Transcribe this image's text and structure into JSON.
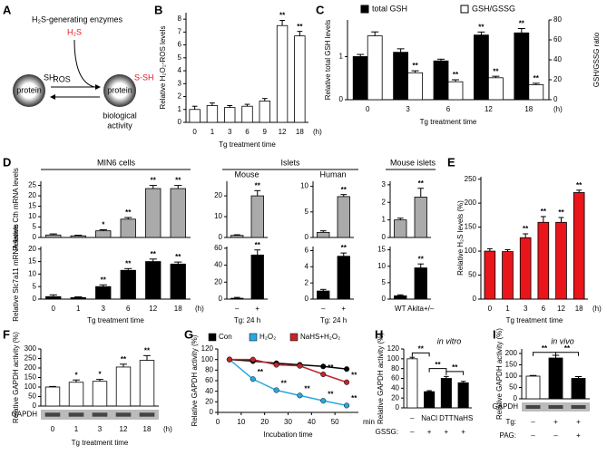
{
  "diagram": {
    "label": "A",
    "enzymes": "H₂S-generating enzymes",
    "h2s": "H₂S",
    "sh": "SH",
    "ssh": "S-SH",
    "protein": [
      "protein",
      "protein"
    ],
    "ros": "ROS",
    "activity": [
      "biological",
      "activity"
    ]
  },
  "chart_data": [
    {
      "type": "bar",
      "label": "B",
      "categories": [
        "0",
        "1",
        "3",
        "6",
        "9",
        "12",
        "18"
      ],
      "x_unit": "(h)",
      "xlabel": "Tg treatment time",
      "ylabel": "Relative H₂O₂-ROS levels",
      "ylim": [
        0,
        8.5
      ],
      "yticks": [
        0,
        1,
        2,
        3,
        4,
        5,
        6,
        7,
        8
      ],
      "series": [
        {
          "color": "#ffffff",
          "values": [
            1,
            1.3,
            1.15,
            1.25,
            1.65,
            7.5,
            6.7
          ],
          "errors": [
            0.25,
            0.2,
            0.15,
            0.15,
            0.2,
            0.4,
            0.35
          ],
          "stars": [
            null,
            null,
            null,
            null,
            null,
            "**",
            "**"
          ]
        }
      ]
    },
    {
      "type": "bar",
      "label": "C",
      "categories": [
        "0",
        "3",
        "6",
        "12",
        "18"
      ],
      "x_unit": "(h)",
      "xlabel": "Tg treatment time",
      "ylabel": "Relative total GSH levels",
      "y2label": "GSH/GSSG ratio",
      "ylim": [
        0,
        1.85
      ],
      "yticks": [
        0,
        1
      ],
      "y2lim": [
        0,
        80
      ],
      "y2ticks": [
        0,
        20,
        40,
        60,
        80
      ],
      "series": [
        {
          "name": "total GSH",
          "color": "#000000",
          "values": [
            1,
            1.1,
            0.9,
            1.5,
            1.55
          ],
          "errors": [
            0.05,
            0.08,
            0.04,
            0.07,
            0.1
          ],
          "stars": [
            null,
            null,
            null,
            "**",
            "**"
          ]
        },
        {
          "name": "GSH/GSSG",
          "color": "#ffffff",
          "axis": "y2",
          "values": [
            64,
            27,
            18,
            22,
            15
          ],
          "errors": [
            4,
            2,
            2,
            1.5,
            1.5
          ],
          "stars": [
            null,
            "**",
            "**",
            "**",
            "**"
          ]
        }
      ]
    },
    {
      "type": "bar",
      "label": "D",
      "title": "MIN6 cells",
      "ylabel": "Relative Cth mRNA levels",
      "ylim": [
        0,
        27
      ],
      "yticks": [
        0,
        5,
        10,
        15,
        20,
        25
      ],
      "series": [
        {
          "color": "#aaaaaa",
          "values": [
            1.2,
            0.8,
            3.2,
            8.8,
            23.5,
            23.5
          ],
          "errors": [
            0.5,
            0.3,
            0.5,
            0.8,
            1.5,
            1.5
          ],
          "stars": [
            null,
            null,
            "*",
            "**",
            "**",
            "**"
          ]
        }
      ]
    },
    {
      "type": "bar",
      "title": "Islets",
      "subtitle": "Mouse",
      "ylim": [
        0,
        27
      ],
      "yticks": [
        0,
        10,
        20
      ],
      "series": [
        {
          "color": "#aaaaaa",
          "values": [
            1,
            20
          ],
          "errors": [
            0.3,
            2.5
          ],
          "stars": [
            null,
            "**"
          ]
        }
      ]
    },
    {
      "type": "bar",
      "subtitle": "Human",
      "ylim": [
        0,
        11
      ],
      "yticks": [
        0,
        5,
        10
      ],
      "series": [
        {
          "color": "#aaaaaa",
          "values": [
            1,
            8
          ],
          "errors": [
            0.3,
            0.4
          ],
          "stars": [
            null,
            "**"
          ]
        }
      ]
    },
    {
      "type": "bar",
      "title": "Mouse islets",
      "ylim": [
        0,
        3.2
      ],
      "yticks": [
        0,
        1,
        2,
        3
      ],
      "series": [
        {
          "color": "#aaaaaa",
          "values": [
            1,
            2.3
          ],
          "errors": [
            0.1,
            0.5
          ],
          "stars": [
            null,
            "**"
          ]
        }
      ]
    },
    {
      "type": "bar",
      "categories": [
        "0",
        "1",
        "3",
        "6",
        "12",
        "18"
      ],
      "x_unit": "(h)",
      "xlabel": "Tg treatment time",
      "ylabel": "Relative Slc7a11 mRNA levels",
      "ylim": [
        0,
        21
      ],
      "yticks": [
        0,
        5,
        10,
        15,
        20
      ],
      "series": [
        {
          "color": "#000000",
          "values": [
            1,
            0.6,
            5,
            11.5,
            15,
            14
          ],
          "errors": [
            0.7,
            0.3,
            0.7,
            0.7,
            1,
            0.8
          ],
          "stars": [
            null,
            null,
            "**",
            "**",
            "**",
            "**"
          ]
        }
      ]
    },
    {
      "type": "bar",
      "categories": [
        "–",
        "+"
      ],
      "xlabel": "Tg: 24 h",
      "ylim": [
        0,
        62
      ],
      "yticks": [
        0,
        20,
        40,
        60
      ],
      "series": [
        {
          "color": "#000000",
          "values": [
            1,
            52
          ],
          "errors": [
            1,
            6
          ],
          "stars": [
            null,
            "**"
          ]
        }
      ]
    },
    {
      "type": "bar",
      "categories": [
        "–",
        "+"
      ],
      "xlabel": "Tg: 24 h",
      "ylim": [
        0,
        6.5
      ],
      "yticks": [
        0,
        2,
        4,
        6
      ],
      "series": [
        {
          "color": "#000000",
          "values": [
            1,
            5.3
          ],
          "errors": [
            0.2,
            0.4
          ],
          "stars": [
            null,
            "**"
          ]
        }
      ]
    },
    {
      "type": "bar",
      "categories": [
        "WT",
        "Akita+/–"
      ],
      "ylim": [
        0,
        16
      ],
      "yticks": [
        0,
        5,
        10,
        15
      ],
      "series": [
        {
          "color": "#000000",
          "values": [
            1,
            9.5
          ],
          "errors": [
            0.3,
            1.2
          ],
          "stars": [
            null,
            "**"
          ]
        }
      ]
    },
    {
      "type": "bar",
      "label": "E",
      "categories": [
        "0",
        "1",
        "3",
        "6",
        "12",
        "18"
      ],
      "x_unit": "(h)",
      "xlabel": "Tg treatment time",
      "ylabel": "Relative H₂S levels (%)",
      "ylim": [
        0,
        255
      ],
      "yticks": [
        0,
        50,
        100,
        150,
        200,
        250
      ],
      "series": [
        {
          "color": "#e8151b",
          "values": [
            100,
            99,
            128,
            160,
            160,
            222
          ],
          "errors": [
            5,
            4,
            8,
            12,
            10,
            5
          ],
          "stars": [
            null,
            null,
            "**",
            "**",
            "**",
            "**"
          ]
        }
      ]
    },
    {
      "type": "bar",
      "label": "F",
      "categories": [
        "0",
        "1",
        "3",
        "12",
        "18"
      ],
      "x_unit": "(h)",
      "xlabel": "Tg treatment time",
      "ylabel": "Relative GAPDH activity (%)",
      "blot": "GAPDH",
      "ylim": [
        0,
        300
      ],
      "yticks": [
        0,
        50,
        100,
        150,
        200,
        250,
        300
      ],
      "series": [
        {
          "color": "#ffffff",
          "values": [
            100,
            125,
            130,
            205,
            240
          ],
          "errors": [
            3,
            12,
            10,
            15,
            25
          ],
          "stars": [
            null,
            "*",
            "*",
            "**",
            "**"
          ]
        }
      ]
    },
    {
      "type": "line",
      "label": "G",
      "x": [
        5,
        15,
        25,
        35,
        45,
        55
      ],
      "xlim": [
        0,
        60
      ],
      "xticks": [
        0,
        10,
        20,
        30,
        40,
        50
      ],
      "x_unit": "min",
      "xlabel": "Incubation time",
      "ylabel": "Relative GAPDH activity (%)",
      "ylim": [
        0,
        120
      ],
      "yticks": [
        0,
        20,
        40,
        60,
        80,
        100,
        120
      ],
      "series": [
        {
          "name": "Con",
          "color": "#000000",
          "values": [
            100,
            97,
            93,
            90,
            87,
            82
          ],
          "errors": [
            3,
            3,
            4,
            3,
            3,
            4
          ]
        },
        {
          "name": "H₂O₂",
          "color": "#29a8e0",
          "values": [
            100,
            63,
            42,
            32,
            22,
            13
          ],
          "errors": [
            3,
            4,
            4,
            3,
            3,
            4
          ],
          "stars": [
            null,
            "**",
            "**",
            "**",
            "**",
            "**"
          ]
        },
        {
          "name": "NaHS+H₂O₂",
          "color": "#c0272d",
          "values": [
            100,
            100,
            90,
            88,
            72,
            57
          ],
          "errors": [
            3,
            4,
            4,
            4,
            4,
            4
          ],
          "stars": [
            null,
            null,
            null,
            null,
            "**",
            "**"
          ]
        }
      ]
    },
    {
      "type": "bar",
      "label": "H",
      "title": "in vitro",
      "ylabel": "Relative GAPDH activity (%)",
      "rows": [
        {
          "values": [
            "–",
            "NaCl",
            "DTT",
            "NaHS"
          ]
        },
        {
          "label": "GSSG:",
          "values": [
            "–",
            "+",
            "+",
            "+"
          ]
        }
      ],
      "brackets": [
        "**",
        "**",
        "**"
      ],
      "ylim": [
        0,
        120
      ],
      "yticks": [
        0,
        20,
        40,
        60,
        80,
        100,
        120
      ],
      "series": [
        {
          "colors": [
            "#ffffff",
            "#000000",
            "#000000",
            "#000000"
          ],
          "values": [
            100,
            33,
            60,
            51
          ],
          "errors": [
            3,
            2,
            4,
            3
          ]
        }
      ]
    },
    {
      "type": "bar",
      "label": "I",
      "title": "in vivo",
      "ylabel": "Relative GAPDH activity (%)",
      "blot": "GAPDH",
      "rows": [
        {
          "label": "Tg:",
          "values": [
            "–",
            "+",
            "+"
          ]
        },
        {
          "label": "PAG:",
          "values": [
            "–",
            "–",
            "+"
          ]
        }
      ],
      "brackets": [
        "**",
        "**"
      ],
      "ylim": [
        0,
        220
      ],
      "yticks": [
        0,
        50,
        100,
        150,
        200
      ],
      "series": [
        {
          "colors": [
            "#ffffff",
            "#000000",
            "#000000"
          ],
          "values": [
            100,
            180,
            90
          ],
          "errors": [
            3,
            12,
            8
          ]
        }
      ]
    }
  ]
}
